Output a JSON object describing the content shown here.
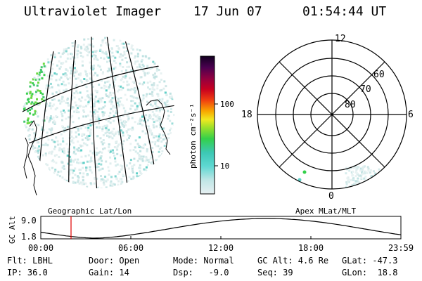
{
  "header": {
    "title": "Ultraviolet Imager",
    "date": "17 Jun 07",
    "time": "01:54:44 UT"
  },
  "colorbar": {
    "unit_label": "photon cm⁻²s⁻¹",
    "ticks": [
      "100",
      "10"
    ]
  },
  "polar_plot": {
    "mlt_labels": {
      "top": "12",
      "left": "18",
      "right": "6",
      "bottom": "0"
    },
    "lat_labels": [
      "60",
      "70",
      "80"
    ]
  },
  "map_labels": {
    "left": "Geographic Lat/Lon",
    "right": "Apex MLat/MLT"
  },
  "altitude_strip": {
    "ylabel": "GC Alt",
    "y_ticks": [
      "9.0",
      "1.8"
    ],
    "x_ticks": [
      "00:00",
      "06:00",
      "12:00",
      "18:00",
      "23:59"
    ],
    "marker_color": "#e00000"
  },
  "info": {
    "row1": {
      "flt": "Flt: LBHL",
      "door": "Door: Open",
      "mode": "Mode: Normal",
      "gcalt": "GC Alt: 4.6 Re",
      "glat": "GLat: -47.3"
    },
    "row2": {
      "ip": "IP: 36.0",
      "gain": "Gain: 14",
      "dsp": "Dsp:   -9.0",
      "seq": "Seq: 39",
      "glon": "GLon:  18.8"
    }
  }
}
